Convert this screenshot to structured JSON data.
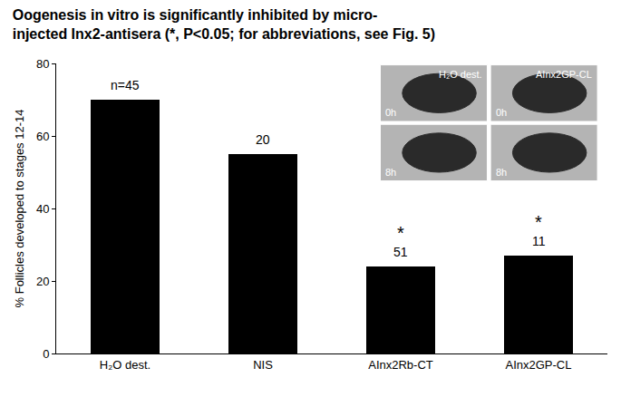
{
  "chart_data": {
    "type": "bar",
    "title": [
      "Oogenesis in vitro is significantly inhibited by micro-",
      "injected Inx2-antisera (*, P<0.05; for abbreviations, see Fig. 5)"
    ],
    "y_label": "% Follicles developed to stages 12-14",
    "categories": [
      "H₂O dest.",
      "NIS",
      "AInx2Rb-CT",
      "AInx2GP-CL"
    ],
    "values": [
      70,
      55,
      24,
      27
    ],
    "bar_labels": [
      "n=45",
      "20",
      "51",
      "11"
    ],
    "significance": [
      null,
      null,
      "*",
      "*"
    ],
    "color": "#000000",
    "ylim": [
      0,
      80
    ],
    "yticks": [
      0,
      20,
      40,
      60,
      80
    ],
    "grid": false,
    "inset_labels": {
      "columns": [
        "H₂O dest.",
        "AInx2GP-CL"
      ],
      "rows": [
        "0h",
        "8h"
      ]
    }
  }
}
